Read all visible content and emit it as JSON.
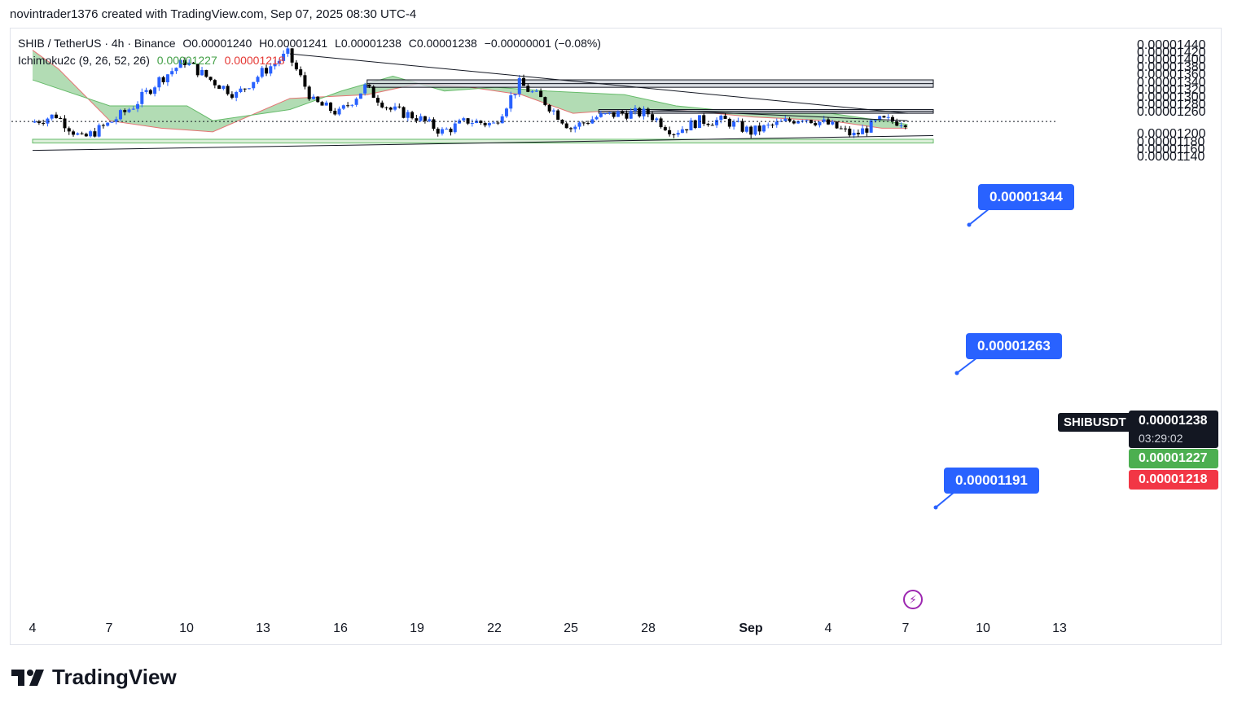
{
  "credit": "novintrader1376 created with TradingView.com, Sep 07, 2025 08:30 UTC-4",
  "legend": {
    "symbol": "SHIB / TetherUS · 4h · Binance",
    "open": "O0.00001240",
    "high": "H0.00001241",
    "low": "L0.00001238",
    "close": "C0.00001238",
    "change": "−0.00000001 (−0.08%)",
    "indicator": "Ichimoku2c (9, 26, 52, 26)",
    "ind_value1": "0.00001227",
    "ind_value2": "0.00001218"
  },
  "price_axis": {
    "ticks": [
      "0.00001440",
      "0.00001420",
      "0.00001400",
      "0.00001380",
      "0.00001360",
      "0.00001340",
      "0.00001320",
      "0.00001300",
      "0.00001280",
      "0.00001260",
      "0.00001200",
      "0.00001180",
      "0.00001160",
      "0.00001140"
    ],
    "symbol_label": "SHIBUSDT",
    "last_price": "0.00001238",
    "countdown": "03:29:02",
    "tenkan": "0.00001227",
    "kijun": "0.00001218"
  },
  "callouts": [
    "0.00001344",
    "0.00001263",
    "0.00001191"
  ],
  "time_axis": [
    "4",
    "7",
    "10",
    "13",
    "16",
    "19",
    "22",
    "25",
    "28",
    "Sep",
    "4",
    "7",
    "10",
    "13"
  ],
  "brand": "TradingView",
  "colors": {
    "up": "#2962ff",
    "down": "#000000",
    "cloud": "#a5d6a7",
    "cloud_edge": "#e57373",
    "support_zone": "#dcefd9",
    "resistance_zone": "#d1d4dc",
    "callout": "#2962ff"
  },
  "chart_data": {
    "type": "candlestick",
    "timeframe": "4h",
    "y_scale": "linear",
    "ylim": [
      1.13e-05,
      1.45e-05
    ],
    "x_range": [
      "Aug 4",
      "Sep 13"
    ],
    "grid": false,
    "price_path": [
      {
        "date": "Aug 4",
        "price": 1.235e-05
      },
      {
        "date": "Aug 5",
        "price": 1.255e-05
      },
      {
        "date": "Aug 6",
        "price": 1.19e-05
      },
      {
        "date": "Aug 7",
        "price": 1.23e-05
      },
      {
        "date": "Aug 8",
        "price": 1.28e-05
      },
      {
        "date": "Aug 9",
        "price": 1.35e-05
      },
      {
        "date": "Aug 10",
        "price": 1.4e-05
      },
      {
        "date": "Aug 11",
        "price": 1.35e-05
      },
      {
        "date": "Aug 12",
        "price": 1.31e-05
      },
      {
        "date": "Aug 13",
        "price": 1.37e-05
      },
      {
        "date": "Aug 14",
        "price": 1.42e-05
      },
      {
        "date": "Aug 15",
        "price": 1.29e-05
      },
      {
        "date": "Aug 16",
        "price": 1.26e-05
      },
      {
        "date": "Aug 17",
        "price": 1.33e-05
      },
      {
        "date": "Aug 18",
        "price": 1.27e-05
      },
      {
        "date": "Aug 19",
        "price": 1.25e-05
      },
      {
        "date": "Aug 20",
        "price": 1.21e-05
      },
      {
        "date": "Aug 21",
        "price": 1.24e-05
      },
      {
        "date": "Aug 22",
        "price": 1.23e-05
      },
      {
        "date": "Aug 23",
        "price": 1.34e-05
      },
      {
        "date": "Aug 24",
        "price": 1.29e-05
      },
      {
        "date": "Aug 25",
        "price": 1.22e-05
      },
      {
        "date": "Aug 26",
        "price": 1.25e-05
      },
      {
        "date": "Aug 27",
        "price": 1.26e-05
      },
      {
        "date": "Aug 28",
        "price": 1.26e-05
      },
      {
        "date": "Aug 29",
        "price": 1.21e-05
      },
      {
        "date": "Aug 30",
        "price": 1.24e-05
      },
      {
        "date": "Aug 31",
        "price": 1.24e-05
      },
      {
        "date": "Sep 1",
        "price": 1.21e-05
      },
      {
        "date": "Sep 2",
        "price": 1.23e-05
      },
      {
        "date": "Sep 3",
        "price": 1.25e-05
      },
      {
        "date": "Sep 4",
        "price": 1.23e-05
      },
      {
        "date": "Sep 5",
        "price": 1.2e-05
      },
      {
        "date": "Sep 6",
        "price": 1.24e-05
      },
      {
        "date": "Sep 7",
        "price": 1.238e-05
      }
    ],
    "cloud_span_a": [
      {
        "date": "Aug 4",
        "price": 1.35e-05
      },
      {
        "date": "Aug 7",
        "price": 1.28e-05
      },
      {
        "date": "Aug 10",
        "price": 1.28e-05
      },
      {
        "date": "Aug 11",
        "price": 1.24e-05
      },
      {
        "date": "Aug 14",
        "price": 1.27e-05
      },
      {
        "date": "Aug 16",
        "price": 1.32e-05
      },
      {
        "date": "Aug 18",
        "price": 1.36e-05
      },
      {
        "date": "Aug 20",
        "price": 1.32e-05
      },
      {
        "date": "Aug 22",
        "price": 1.33e-05
      },
      {
        "date": "Aug 24",
        "price": 1.32e-05
      },
      {
        "date": "Aug 27",
        "price": 1.31e-05
      },
      {
        "date": "Aug 29",
        "price": 1.28e-05
      },
      {
        "date": "Sep 1",
        "price": 1.26e-05
      },
      {
        "date": "Sep 4",
        "price": 1.26e-05
      },
      {
        "date": "Sep 6",
        "price": 1.24e-05
      },
      {
        "date": "Sep 7",
        "price": 1.23e-05
      }
    ],
    "cloud_span_b": [
      {
        "date": "Aug 4",
        "price": 1.43e-05
      },
      {
        "date": "Aug 5",
        "price": 1.38e-05
      },
      {
        "date": "Aug 7",
        "price": 1.24e-05
      },
      {
        "date": "Aug 9",
        "price": 1.22e-05
      },
      {
        "date": "Aug 11",
        "price": 1.21e-05
      },
      {
        "date": "Aug 14",
        "price": 1.3e-05
      },
      {
        "date": "Aug 17",
        "price": 1.31e-05
      },
      {
        "date": "Aug 19",
        "price": 1.34e-05
      },
      {
        "date": "Aug 21",
        "price": 1.33e-05
      },
      {
        "date": "Aug 23",
        "price": 1.31e-05
      },
      {
        "date": "Aug 25",
        "price": 1.26e-05
      },
      {
        "date": "Aug 27",
        "price": 1.27e-05
      },
      {
        "date": "Aug 29",
        "price": 1.27e-05
      },
      {
        "date": "Sep 1",
        "price": 1.25e-05
      },
      {
        "date": "Sep 4",
        "price": 1.24e-05
      },
      {
        "date": "Sep 6",
        "price": 1.22e-05
      },
      {
        "date": "Sep 7",
        "price": 1.22e-05
      }
    ],
    "trendlines": [
      {
        "from": {
          "date": "Aug 14",
          "price": 1.42e-05
        },
        "to": {
          "date": "Sep 7",
          "price": 1.26e-05
        }
      },
      {
        "from": {
          "date": "Aug 28",
          "price": 1.27e-05
        },
        "to": {
          "date": "Sep 7",
          "price": 1.24e-05
        }
      },
      {
        "from": {
          "date": "Aug 4",
          "price": 1.16e-05
        },
        "to": {
          "date": "Sep 8",
          "price": 1.2e-05
        }
      }
    ],
    "zones": [
      {
        "type": "resistance",
        "from_date": "Aug 17",
        "to_date": "Sep 8",
        "low": 1.33e-05,
        "high": 1.35e-05
      },
      {
        "type": "resistance",
        "from_date": "Aug 26",
        "to_date": "Sep 8",
        "low": 1.26e-05,
        "high": 1.27e-05
      },
      {
        "type": "support",
        "from_date": "Aug 4",
        "to_date": "Sep 8",
        "low": 1.18e-05,
        "high": 1.19e-05
      }
    ],
    "annotations": [
      {
        "label": "0.00001344",
        "price": 1.344e-05
      },
      {
        "label": "0.00001263",
        "price": 1.263e-05
      },
      {
        "label": "0.00001191",
        "price": 1.191e-05
      }
    ],
    "last_price": 1.238e-05
  }
}
